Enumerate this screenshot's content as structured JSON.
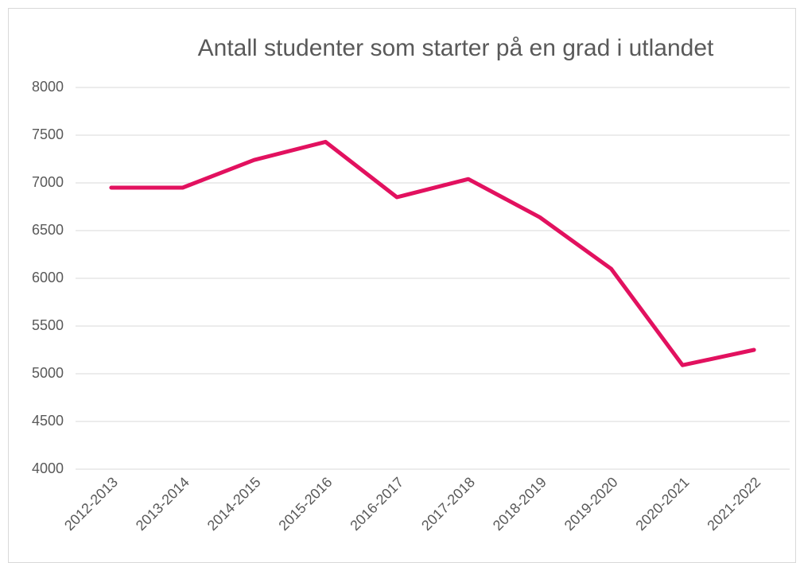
{
  "chart_data": {
    "type": "line",
    "title": "Antall studenter som starter på en grad i utlandet",
    "categories": [
      "2012-2013",
      "2013-2014",
      "2014-2015",
      "2015-2016",
      "2016-2017",
      "2017-2018",
      "2018-2019",
      "2019-2020",
      "2020-2021",
      "2021-2022"
    ],
    "series": [
      {
        "color": "#e2115f",
        "values": [
          6950,
          6950,
          7240,
          7430,
          6850,
          7040,
          6640,
          6100,
          5090,
          5250
        ]
      }
    ],
    "ylim": [
      4000,
      8000
    ],
    "yticks": [
      4000,
      4500,
      5000,
      5500,
      6000,
      6500,
      7000,
      7500,
      8000
    ],
    "grid": true
  }
}
